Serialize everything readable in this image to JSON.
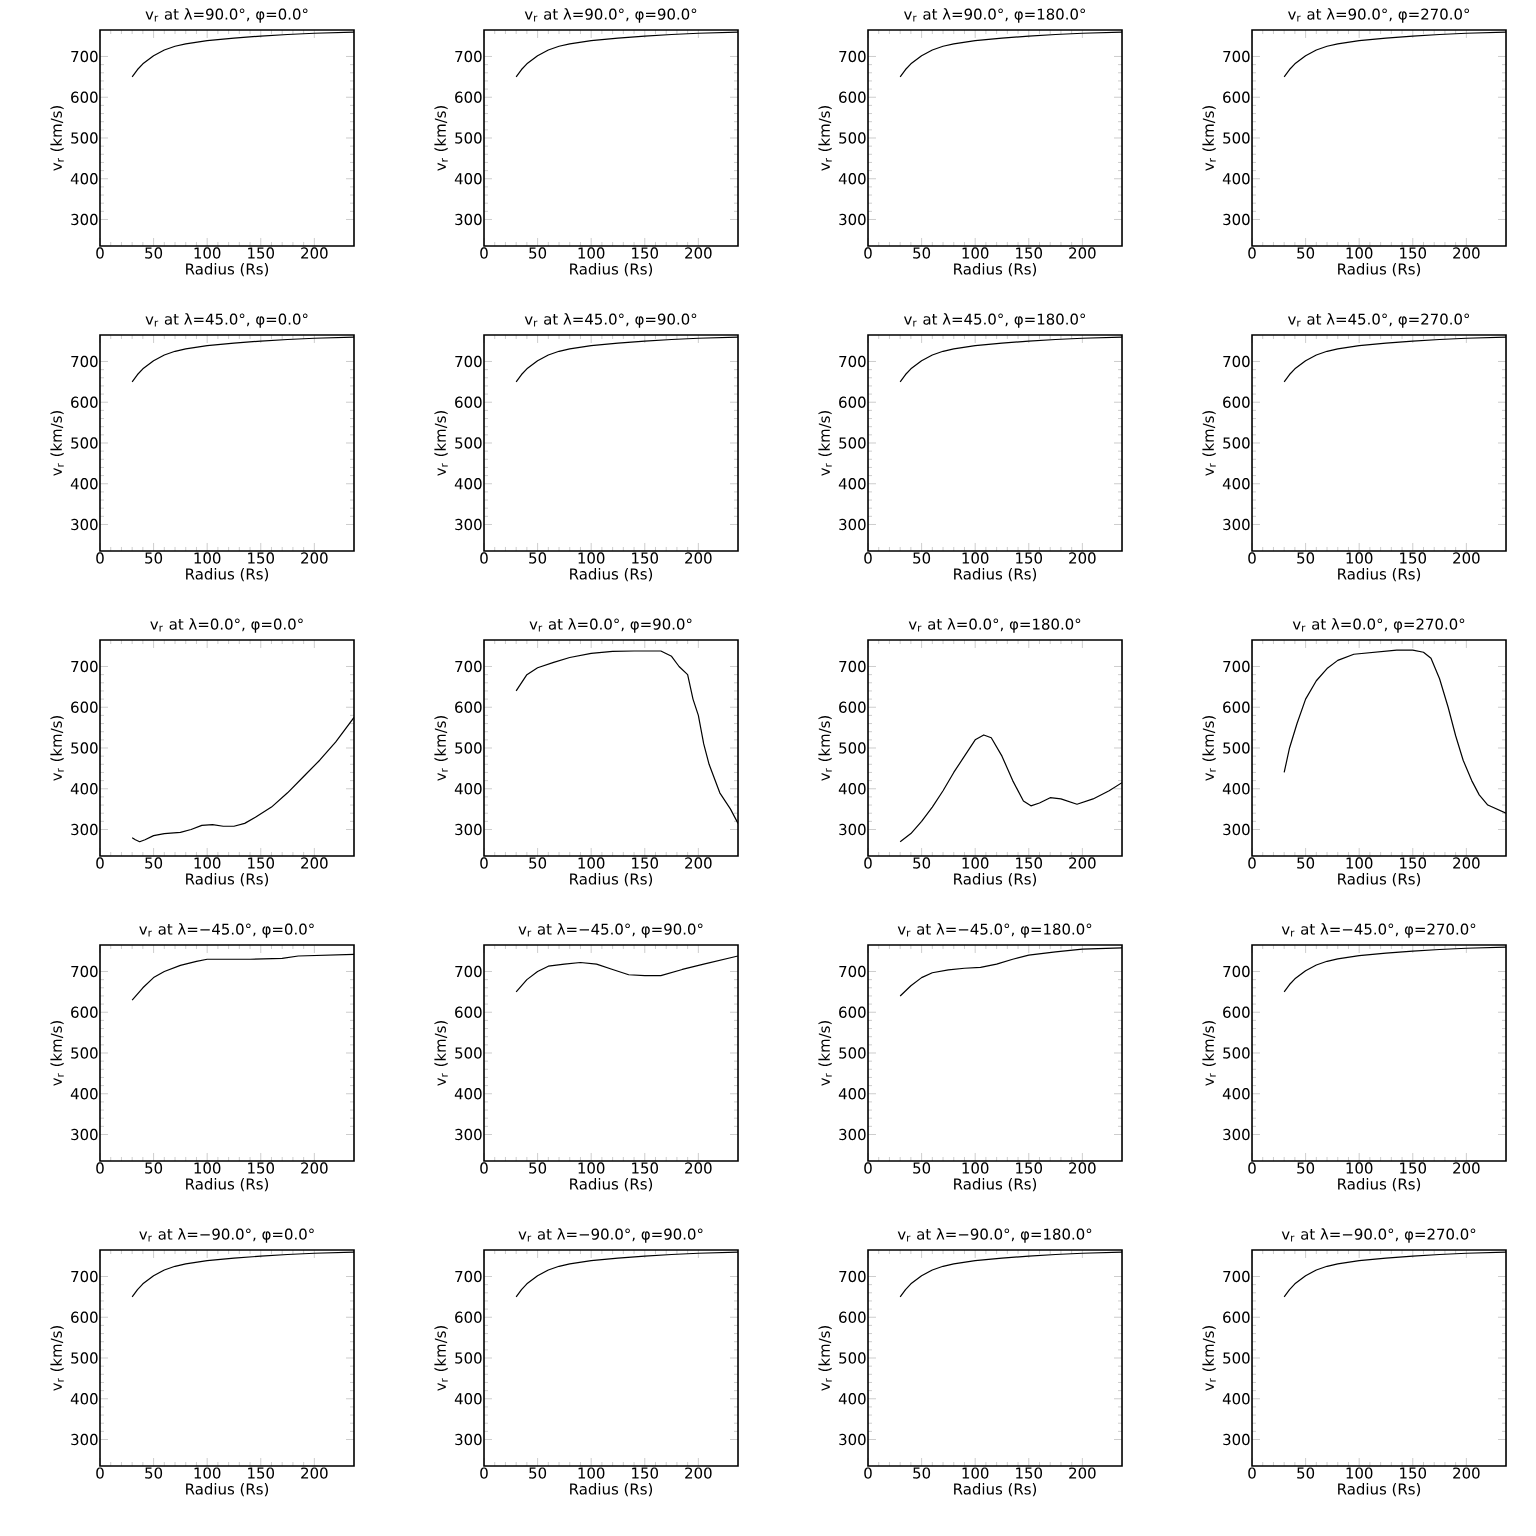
{
  "chart_data": [
    {
      "type": "line",
      "title": "v$_{r}$ at λ=90.0°, φ=0.0°",
      "xlabel": "Radius (Rs)",
      "ylabel": "v$_{r}$ (km/s)",
      "xlim": [
        0,
        237
      ],
      "ylim": [
        235,
        765
      ],
      "xticks": [
        0,
        50,
        100,
        150,
        200
      ],
      "yticks": [
        300,
        400,
        500,
        600,
        700
      ],
      "color": "#000000",
      "x": [
        30,
        35,
        40,
        50,
        60,
        70,
        80,
        100,
        125,
        150,
        175,
        200,
        237
      ],
      "values": [
        650,
        668,
        682,
        702,
        716,
        725,
        731,
        739,
        745,
        750,
        754,
        757,
        760
      ]
    },
    {
      "type": "line",
      "title": "v$_{r}$ at λ=90.0°, φ=90.0°",
      "xlabel": "Radius (Rs)",
      "ylabel": "v$_{r}$ (km/s)",
      "xlim": [
        0,
        237
      ],
      "ylim": [
        235,
        765
      ],
      "xticks": [
        0,
        50,
        100,
        150,
        200
      ],
      "yticks": [
        300,
        400,
        500,
        600,
        700
      ],
      "color": "#000000",
      "x": [
        30,
        35,
        40,
        50,
        60,
        70,
        80,
        100,
        125,
        150,
        175,
        200,
        237
      ],
      "values": [
        650,
        668,
        682,
        702,
        716,
        725,
        731,
        739,
        745,
        750,
        754,
        757,
        760
      ]
    },
    {
      "type": "line",
      "title": "v$_{r}$ at λ=90.0°, φ=180.0°",
      "xlabel": "Radius (Rs)",
      "ylabel": "v$_{r}$ (km/s)",
      "xlim": [
        0,
        237
      ],
      "ylim": [
        235,
        765
      ],
      "xticks": [
        0,
        50,
        100,
        150,
        200
      ],
      "yticks": [
        300,
        400,
        500,
        600,
        700
      ],
      "color": "#000000",
      "x": [
        30,
        35,
        40,
        50,
        60,
        70,
        80,
        100,
        125,
        150,
        175,
        200,
        237
      ],
      "values": [
        650,
        668,
        682,
        702,
        716,
        725,
        731,
        739,
        745,
        750,
        754,
        757,
        760
      ]
    },
    {
      "type": "line",
      "title": "v$_{r}$ at λ=90.0°, φ=270.0°",
      "xlabel": "Radius (Rs)",
      "ylabel": "v$_{r}$ (km/s)",
      "xlim": [
        0,
        237
      ],
      "ylim": [
        235,
        765
      ],
      "xticks": [
        0,
        50,
        100,
        150,
        200
      ],
      "yticks": [
        300,
        400,
        500,
        600,
        700
      ],
      "color": "#000000",
      "x": [
        30,
        35,
        40,
        50,
        60,
        70,
        80,
        100,
        125,
        150,
        175,
        200,
        237
      ],
      "values": [
        650,
        668,
        682,
        702,
        716,
        725,
        731,
        739,
        745,
        750,
        754,
        757,
        760
      ]
    },
    {
      "type": "line",
      "title": "v$_{r}$ at λ=45.0°, φ=0.0°",
      "xlabel": "Radius (Rs)",
      "ylabel": "v$_{r}$ (km/s)",
      "xlim": [
        0,
        237
      ],
      "ylim": [
        235,
        765
      ],
      "xticks": [
        0,
        50,
        100,
        150,
        200
      ],
      "yticks": [
        300,
        400,
        500,
        600,
        700
      ],
      "color": "#000000",
      "x": [
        30,
        35,
        40,
        50,
        60,
        70,
        80,
        100,
        125,
        150,
        175,
        200,
        237
      ],
      "values": [
        650,
        668,
        682,
        702,
        716,
        725,
        731,
        739,
        745,
        750,
        754,
        757,
        760
      ]
    },
    {
      "type": "line",
      "title": "v$_{r}$ at λ=45.0°, φ=90.0°",
      "xlabel": "Radius (Rs)",
      "ylabel": "v$_{r}$ (km/s)",
      "xlim": [
        0,
        237
      ],
      "ylim": [
        235,
        765
      ],
      "xticks": [
        0,
        50,
        100,
        150,
        200
      ],
      "yticks": [
        300,
        400,
        500,
        600,
        700
      ],
      "color": "#000000",
      "x": [
        30,
        35,
        40,
        50,
        60,
        70,
        80,
        100,
        125,
        150,
        175,
        200,
        237
      ],
      "values": [
        650,
        668,
        682,
        702,
        716,
        725,
        731,
        739,
        745,
        750,
        754,
        757,
        760
      ]
    },
    {
      "type": "line",
      "title": "v$_{r}$ at λ=45.0°, φ=180.0°",
      "xlabel": "Radius (Rs)",
      "ylabel": "v$_{r}$ (km/s)",
      "xlim": [
        0,
        237
      ],
      "ylim": [
        235,
        765
      ],
      "xticks": [
        0,
        50,
        100,
        150,
        200
      ],
      "yticks": [
        300,
        400,
        500,
        600,
        700
      ],
      "color": "#000000",
      "x": [
        30,
        35,
        40,
        50,
        60,
        70,
        80,
        100,
        125,
        150,
        175,
        200,
        237
      ],
      "values": [
        650,
        668,
        682,
        702,
        716,
        725,
        731,
        739,
        745,
        750,
        754,
        757,
        760
      ]
    },
    {
      "type": "line",
      "title": "v$_{r}$ at λ=45.0°, φ=270.0°",
      "xlabel": "Radius (Rs)",
      "ylabel": "v$_{r}$ (km/s)",
      "xlim": [
        0,
        237
      ],
      "ylim": [
        235,
        765
      ],
      "xticks": [
        0,
        50,
        100,
        150,
        200
      ],
      "yticks": [
        300,
        400,
        500,
        600,
        700
      ],
      "color": "#000000",
      "x": [
        30,
        35,
        40,
        50,
        60,
        70,
        80,
        100,
        125,
        150,
        175,
        200,
        237
      ],
      "values": [
        650,
        668,
        682,
        702,
        716,
        725,
        731,
        739,
        745,
        750,
        754,
        757,
        760
      ]
    },
    {
      "type": "line",
      "title": "v$_{r}$ at λ=0.0°, φ=0.0°",
      "xlabel": "Radius (Rs)",
      "ylabel": "v$_{r}$ (km/s)",
      "xlim": [
        0,
        237
      ],
      "ylim": [
        235,
        765
      ],
      "xticks": [
        0,
        50,
        100,
        150,
        200
      ],
      "yticks": [
        300,
        400,
        500,
        600,
        700
      ],
      "color": "#000000",
      "x": [
        30,
        33,
        37,
        42,
        50,
        60,
        75,
        85,
        95,
        105,
        115,
        125,
        135,
        145,
        160,
        175,
        190,
        205,
        220,
        237
      ],
      "values": [
        280,
        275,
        270,
        275,
        285,
        290,
        293,
        300,
        310,
        312,
        308,
        308,
        315,
        330,
        355,
        390,
        430,
        470,
        515,
        575
      ]
    },
    {
      "type": "line",
      "title": "v$_{r}$ at λ=0.0°, φ=90.0°",
      "xlabel": "Radius (Rs)",
      "ylabel": "v$_{r}$ (km/s)",
      "xlim": [
        0,
        237
      ],
      "ylim": [
        235,
        765
      ],
      "xticks": [
        0,
        50,
        100,
        150,
        200
      ],
      "yticks": [
        300,
        400,
        500,
        600,
        700
      ],
      "color": "#000000",
      "x": [
        30,
        35,
        40,
        50,
        65,
        80,
        100,
        120,
        140,
        165,
        175,
        182,
        190,
        195,
        200,
        205,
        210,
        220,
        230,
        237
      ],
      "values": [
        640,
        660,
        680,
        697,
        710,
        722,
        732,
        737,
        738,
        738,
        725,
        700,
        680,
        620,
        580,
        510,
        460,
        390,
        350,
        315
      ]
    },
    {
      "type": "line",
      "title": "v$_{r}$ at λ=0.0°, φ=180.0°",
      "xlabel": "Radius (Rs)",
      "ylabel": "v$_{r}$ (km/s)",
      "xlim": [
        0,
        237
      ],
      "ylim": [
        235,
        765
      ],
      "xticks": [
        0,
        50,
        100,
        150,
        200
      ],
      "yticks": [
        300,
        400,
        500,
        600,
        700
      ],
      "color": "#000000",
      "x": [
        30,
        40,
        50,
        60,
        70,
        80,
        90,
        100,
        108,
        115,
        125,
        135,
        145,
        152,
        160,
        170,
        180,
        195,
        210,
        225,
        237
      ],
      "values": [
        270,
        290,
        320,
        355,
        395,
        440,
        480,
        520,
        532,
        525,
        480,
        420,
        370,
        358,
        365,
        378,
        375,
        362,
        375,
        395,
        415
      ]
    },
    {
      "type": "line",
      "title": "v$_{r}$ at λ=0.0°, φ=270.0°",
      "xlabel": "Radius (Rs)",
      "ylabel": "v$_{r}$ (km/s)",
      "xlim": [
        0,
        237
      ],
      "ylim": [
        235,
        765
      ],
      "xticks": [
        0,
        50,
        100,
        150,
        200
      ],
      "yticks": [
        300,
        400,
        500,
        600,
        700
      ],
      "color": "#000000",
      "x": [
        30,
        35,
        42,
        50,
        60,
        70,
        80,
        95,
        115,
        135,
        150,
        160,
        167,
        175,
        183,
        190,
        197,
        205,
        212,
        220,
        237
      ],
      "values": [
        440,
        500,
        560,
        620,
        665,
        695,
        715,
        730,
        735,
        740,
        740,
        735,
        720,
        670,
        600,
        530,
        470,
        420,
        385,
        360,
        340
      ]
    },
    {
      "type": "line",
      "title": "v$_{r}$ at λ=−45.0°, φ=0.0°",
      "xlabel": "Radius (Rs)",
      "ylabel": "v$_{r}$ (km/s)",
      "xlim": [
        0,
        237
      ],
      "ylim": [
        235,
        765
      ],
      "xticks": [
        0,
        50,
        100,
        150,
        200
      ],
      "yticks": [
        300,
        400,
        500,
        600,
        700
      ],
      "color": "#000000",
      "x": [
        30,
        40,
        50,
        60,
        75,
        90,
        100,
        140,
        170,
        185,
        237
      ],
      "values": [
        630,
        660,
        685,
        700,
        715,
        725,
        730,
        730,
        732,
        738,
        742
      ]
    },
    {
      "type": "line",
      "title": "v$_{r}$ at λ=−45.0°, φ=90.0°",
      "xlabel": "Radius (Rs)",
      "ylabel": "v$_{r}$ (km/s)",
      "xlim": [
        0,
        237
      ],
      "ylim": [
        235,
        765
      ],
      "xticks": [
        0,
        50,
        100,
        150,
        200
      ],
      "yticks": [
        300,
        400,
        500,
        600,
        700
      ],
      "color": "#000000",
      "x": [
        30,
        40,
        50,
        60,
        75,
        90,
        105,
        120,
        135,
        150,
        165,
        185,
        205,
        237
      ],
      "values": [
        650,
        680,
        700,
        713,
        718,
        722,
        718,
        705,
        692,
        690,
        690,
        705,
        718,
        738
      ]
    },
    {
      "type": "line",
      "title": "v$_{r}$ at λ=−45.0°, φ=180.0°",
      "xlabel": "Radius (Rs)",
      "ylabel": "v$_{r}$ (km/s)",
      "xlim": [
        0,
        237
      ],
      "ylim": [
        235,
        765
      ],
      "xticks": [
        0,
        50,
        100,
        150,
        200
      ],
      "yticks": [
        300,
        400,
        500,
        600,
        700
      ],
      "color": "#000000",
      "x": [
        30,
        40,
        50,
        60,
        75,
        90,
        105,
        120,
        135,
        150,
        175,
        200,
        237
      ],
      "values": [
        640,
        665,
        685,
        697,
        704,
        708,
        710,
        718,
        730,
        740,
        748,
        755,
        758
      ]
    },
    {
      "type": "line",
      "title": "v$_{r}$ at λ=−45.0°, φ=270.0°",
      "xlabel": "Radius (Rs)",
      "ylabel": "v$_{r}$ (km/s)",
      "xlim": [
        0,
        237
      ],
      "ylim": [
        235,
        765
      ],
      "xticks": [
        0,
        50,
        100,
        150,
        200
      ],
      "yticks": [
        300,
        400,
        500,
        600,
        700
      ],
      "color": "#000000",
      "x": [
        30,
        35,
        40,
        50,
        60,
        70,
        80,
        100,
        125,
        150,
        175,
        200,
        237
      ],
      "values": [
        650,
        668,
        682,
        702,
        716,
        725,
        731,
        739,
        745,
        750,
        754,
        757,
        760
      ]
    },
    {
      "type": "line",
      "title": "v$_{r}$ at λ=−90.0°, φ=0.0°",
      "xlabel": "Radius (Rs)",
      "ylabel": "v$_{r}$ (km/s)",
      "xlim": [
        0,
        237
      ],
      "ylim": [
        235,
        765
      ],
      "xticks": [
        0,
        50,
        100,
        150,
        200
      ],
      "yticks": [
        300,
        400,
        500,
        600,
        700
      ],
      "color": "#000000",
      "x": [
        30,
        35,
        40,
        50,
        60,
        70,
        80,
        100,
        125,
        150,
        175,
        200,
        237
      ],
      "values": [
        650,
        668,
        682,
        702,
        716,
        725,
        731,
        739,
        745,
        750,
        754,
        757,
        760
      ]
    },
    {
      "type": "line",
      "title": "v$_{r}$ at λ=−90.0°, φ=90.0°",
      "xlabel": "Radius (Rs)",
      "ylabel": "v$_{r}$ (km/s)",
      "xlim": [
        0,
        237
      ],
      "ylim": [
        235,
        765
      ],
      "xticks": [
        0,
        50,
        100,
        150,
        200
      ],
      "yticks": [
        300,
        400,
        500,
        600,
        700
      ],
      "color": "#000000",
      "x": [
        30,
        35,
        40,
        50,
        60,
        70,
        80,
        100,
        125,
        150,
        175,
        200,
        237
      ],
      "values": [
        650,
        668,
        682,
        702,
        716,
        725,
        731,
        739,
        745,
        750,
        754,
        757,
        760
      ]
    },
    {
      "type": "line",
      "title": "v$_{r}$ at λ=−90.0°, φ=180.0°",
      "xlabel": "Radius (Rs)",
      "ylabel": "v$_{r}$ (km/s)",
      "xlim": [
        0,
        237
      ],
      "ylim": [
        235,
        765
      ],
      "xticks": [
        0,
        50,
        100,
        150,
        200
      ],
      "yticks": [
        300,
        400,
        500,
        600,
        700
      ],
      "color": "#000000",
      "x": [
        30,
        35,
        40,
        50,
        60,
        70,
        80,
        100,
        125,
        150,
        175,
        200,
        237
      ],
      "values": [
        650,
        668,
        682,
        702,
        716,
        725,
        731,
        739,
        745,
        750,
        754,
        757,
        760
      ]
    },
    {
      "type": "line",
      "title": "v$_{r}$ at λ=−90.0°, φ=270.0°",
      "xlabel": "Radius (Rs)",
      "ylabel": "v$_{r}$ (km/s)",
      "xlim": [
        0,
        237
      ],
      "ylim": [
        235,
        765
      ],
      "xticks": [
        0,
        50,
        100,
        150,
        200
      ],
      "yticks": [
        300,
        400,
        500,
        600,
        700
      ],
      "color": "#000000",
      "x": [
        30,
        35,
        40,
        50,
        60,
        70,
        80,
        100,
        125,
        150,
        175,
        200,
        237
      ],
      "values": [
        650,
        668,
        682,
        702,
        716,
        725,
        731,
        739,
        745,
        750,
        754,
        757,
        760
      ]
    }
  ]
}
